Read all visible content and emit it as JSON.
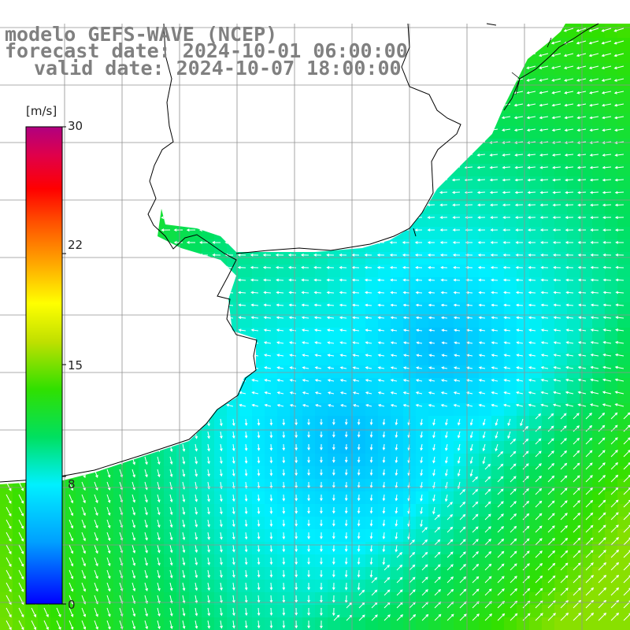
{
  "header": {
    "model_line": "modelo GEFS-WAVE (NCEP)",
    "forecast_line": "forecast date: 2024-10-01 06:00:00",
    "valid_line": "valid date: 2024-10-07 18:00:00"
  },
  "colorbar": {
    "unit": "[m/s]",
    "ticks": [
      "30",
      "22",
      "15",
      "8",
      "0"
    ],
    "tick_values": [
      30,
      22,
      15,
      8,
      0
    ],
    "range": [
      0,
      30
    ],
    "colors": [
      "#0000ff",
      "#00a0ff",
      "#00f0ff",
      "#00e060",
      "#30e000",
      "#c0e000",
      "#ffff00",
      "#ffa000",
      "#ff5000",
      "#ff0000",
      "#e0004a",
      "#b00080"
    ]
  },
  "map": {
    "variable": "wind speed and direction",
    "land_color": "#ffffff",
    "coast_color": "#000000",
    "grid_color": "#909090"
  }
}
